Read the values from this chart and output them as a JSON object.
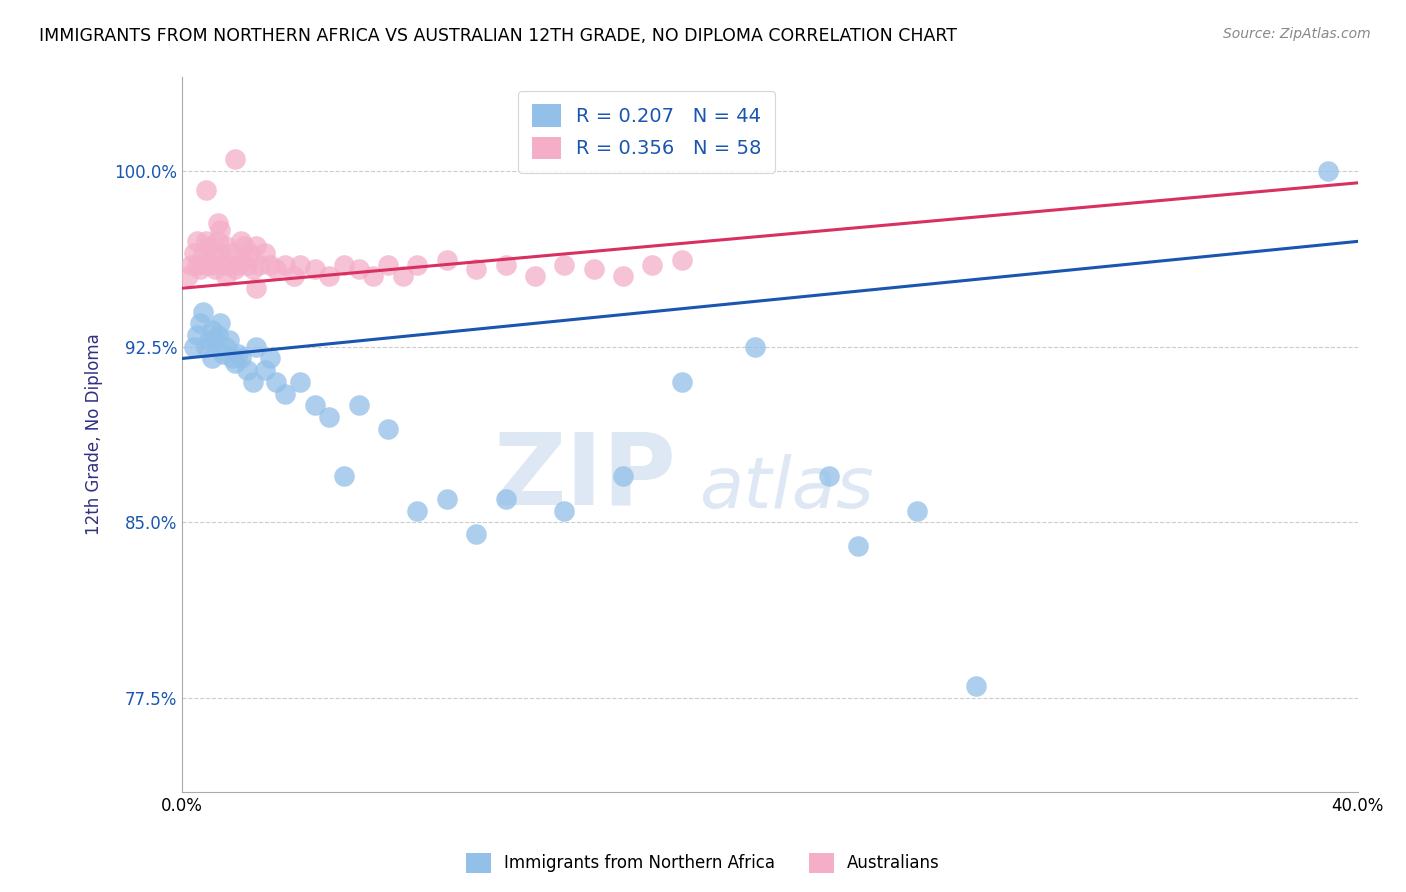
{
  "title": "IMMIGRANTS FROM NORTHERN AFRICA VS AUSTRALIAN 12TH GRADE, NO DIPLOMA CORRELATION CHART",
  "source": "Source: ZipAtlas.com",
  "ylabel": "12th Grade, No Diploma",
  "xlim": [
    0.0,
    0.4
  ],
  "ylim": [
    0.735,
    1.04
  ],
  "xticks": [
    0.0,
    0.1,
    0.2,
    0.3,
    0.4
  ],
  "xticklabels": [
    "0.0%",
    "",
    "",
    "",
    "40.0%"
  ],
  "yticks": [
    0.775,
    0.85,
    0.925,
    1.0
  ],
  "yticklabels": [
    "77.5%",
    "85.0%",
    "92.5%",
    "100.0%"
  ],
  "blue_R": 0.207,
  "blue_N": 44,
  "pink_R": 0.356,
  "pink_N": 58,
  "blue_color": "#92c0e8",
  "pink_color": "#f4aec8",
  "blue_line_color": "#1a56b0",
  "pink_line_color": "#d83060",
  "legend_label_blue": "Immigrants from Northern Africa",
  "legend_label_pink": "Australians",
  "watermark_zip": "ZIP",
  "watermark_atlas": "atlas",
  "blue_scatter_x": [
    0.004,
    0.005,
    0.006,
    0.007,
    0.008,
    0.009,
    0.01,
    0.01,
    0.011,
    0.012,
    0.013,
    0.014,
    0.015,
    0.016,
    0.017,
    0.018,
    0.019,
    0.02,
    0.022,
    0.024,
    0.025,
    0.028,
    0.03,
    0.032,
    0.035,
    0.04,
    0.045,
    0.05,
    0.055,
    0.06,
    0.07,
    0.08,
    0.09,
    0.1,
    0.11,
    0.13,
    0.15,
    0.17,
    0.195,
    0.22,
    0.25,
    0.27,
    0.23,
    0.39
  ],
  "blue_scatter_y": [
    0.925,
    0.93,
    0.935,
    0.94,
    0.925,
    0.928,
    0.932,
    0.92,
    0.928,
    0.93,
    0.935,
    0.922,
    0.925,
    0.928,
    0.92,
    0.918,
    0.922,
    0.92,
    0.915,
    0.91,
    0.925,
    0.915,
    0.92,
    0.91,
    0.905,
    0.91,
    0.9,
    0.895,
    0.87,
    0.9,
    0.89,
    0.855,
    0.86,
    0.845,
    0.86,
    0.855,
    0.87,
    0.91,
    0.925,
    0.87,
    0.855,
    0.78,
    0.84,
    1.0
  ],
  "pink_scatter_x": [
    0.002,
    0.003,
    0.004,
    0.005,
    0.005,
    0.006,
    0.007,
    0.008,
    0.008,
    0.009,
    0.01,
    0.01,
    0.011,
    0.012,
    0.013,
    0.013,
    0.014,
    0.015,
    0.015,
    0.016,
    0.017,
    0.018,
    0.019,
    0.02,
    0.02,
    0.021,
    0.022,
    0.023,
    0.024,
    0.025,
    0.026,
    0.028,
    0.03,
    0.032,
    0.035,
    0.038,
    0.04,
    0.045,
    0.05,
    0.055,
    0.06,
    0.065,
    0.07,
    0.075,
    0.08,
    0.09,
    0.1,
    0.11,
    0.12,
    0.13,
    0.14,
    0.15,
    0.16,
    0.17,
    0.008,
    0.012,
    0.018,
    0.025
  ],
  "pink_scatter_y": [
    0.955,
    0.96,
    0.965,
    0.97,
    0.96,
    0.958,
    0.965,
    0.97,
    0.96,
    0.968,
    0.965,
    0.96,
    0.958,
    0.97,
    0.965,
    0.975,
    0.96,
    0.968,
    0.955,
    0.96,
    0.965,
    0.958,
    0.96,
    0.962,
    0.97,
    0.968,
    0.96,
    0.965,
    0.958,
    0.968,
    0.96,
    0.965,
    0.96,
    0.958,
    0.96,
    0.955,
    0.96,
    0.958,
    0.955,
    0.96,
    0.958,
    0.955,
    0.96,
    0.955,
    0.96,
    0.962,
    0.958,
    0.96,
    0.955,
    0.96,
    0.958,
    0.955,
    0.96,
    0.962,
    0.992,
    0.978,
    1.005,
    0.95
  ],
  "blue_line_x0": 0.0,
  "blue_line_y0": 0.92,
  "blue_line_x1": 0.4,
  "blue_line_y1": 0.97,
  "pink_line_x0": 0.0,
  "pink_line_y0": 0.95,
  "pink_line_x1": 0.4,
  "pink_line_y1": 0.995
}
